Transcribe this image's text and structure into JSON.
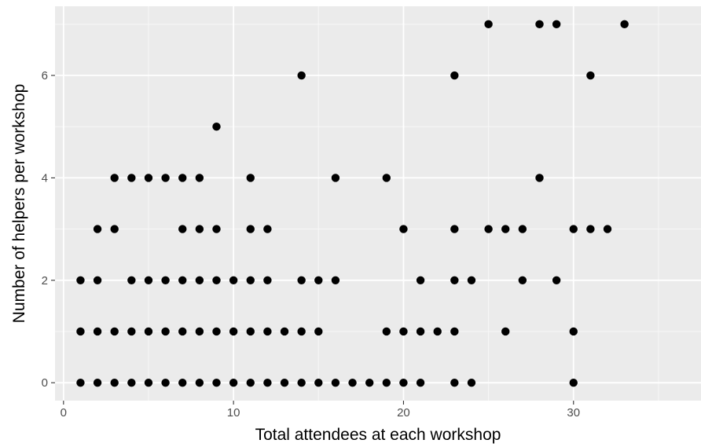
{
  "chart_data": {
    "type": "scatter",
    "xlabel": "Total attendees at each workshop",
    "ylabel": "Number of helpers per workshop",
    "xlim": [
      -0.5,
      37.5
    ],
    "ylim": [
      -0.35,
      7.35
    ],
    "x_ticks": [
      0,
      10,
      20,
      30
    ],
    "y_ticks": [
      0,
      2,
      4,
      6
    ],
    "x_minor_ticks": [
      5,
      15,
      25,
      35
    ],
    "y_minor_ticks": [
      1,
      3,
      5,
      7
    ],
    "grid": true,
    "panel_color": "#ebebeb",
    "point_color": "#000000",
    "points": [
      [
        1,
        0
      ],
      [
        2,
        0
      ],
      [
        3,
        0
      ],
      [
        4,
        0
      ],
      [
        5,
        0
      ],
      [
        6,
        0
      ],
      [
        7,
        0
      ],
      [
        8,
        0
      ],
      [
        9,
        0
      ],
      [
        10,
        0
      ],
      [
        11,
        0
      ],
      [
        12,
        0
      ],
      [
        13,
        0
      ],
      [
        14,
        0
      ],
      [
        15,
        0
      ],
      [
        16,
        0
      ],
      [
        17,
        0
      ],
      [
        18,
        0
      ],
      [
        19,
        0
      ],
      [
        20,
        0
      ],
      [
        21,
        0
      ],
      [
        23,
        0
      ],
      [
        24,
        0
      ],
      [
        30,
        0
      ],
      [
        1,
        1
      ],
      [
        2,
        1
      ],
      [
        3,
        1
      ],
      [
        4,
        1
      ],
      [
        5,
        1
      ],
      [
        6,
        1
      ],
      [
        7,
        1
      ],
      [
        8,
        1
      ],
      [
        9,
        1
      ],
      [
        10,
        1
      ],
      [
        11,
        1
      ],
      [
        12,
        1
      ],
      [
        13,
        1
      ],
      [
        14,
        1
      ],
      [
        15,
        1
      ],
      [
        19,
        1
      ],
      [
        20,
        1
      ],
      [
        21,
        1
      ],
      [
        22,
        1
      ],
      [
        23,
        1
      ],
      [
        26,
        1
      ],
      [
        30,
        1
      ],
      [
        1,
        2
      ],
      [
        2,
        2
      ],
      [
        4,
        2
      ],
      [
        5,
        2
      ],
      [
        6,
        2
      ],
      [
        7,
        2
      ],
      [
        8,
        2
      ],
      [
        9,
        2
      ],
      [
        10,
        2
      ],
      [
        11,
        2
      ],
      [
        12,
        2
      ],
      [
        14,
        2
      ],
      [
        15,
        2
      ],
      [
        16,
        2
      ],
      [
        21,
        2
      ],
      [
        23,
        2
      ],
      [
        24,
        2
      ],
      [
        27,
        2
      ],
      [
        29,
        2
      ],
      [
        2,
        3
      ],
      [
        3,
        3
      ],
      [
        7,
        3
      ],
      [
        8,
        3
      ],
      [
        9,
        3
      ],
      [
        11,
        3
      ],
      [
        12,
        3
      ],
      [
        20,
        3
      ],
      [
        23,
        3
      ],
      [
        25,
        3
      ],
      [
        26,
        3
      ],
      [
        27,
        3
      ],
      [
        30,
        3
      ],
      [
        31,
        3
      ],
      [
        32,
        3
      ],
      [
        3,
        4
      ],
      [
        4,
        4
      ],
      [
        5,
        4
      ],
      [
        6,
        4
      ],
      [
        7,
        4
      ],
      [
        8,
        4
      ],
      [
        11,
        4
      ],
      [
        16,
        4
      ],
      [
        19,
        4
      ],
      [
        28,
        4
      ],
      [
        9,
        5
      ],
      [
        14,
        6
      ],
      [
        23,
        6
      ],
      [
        31,
        6
      ],
      [
        25,
        7
      ],
      [
        28,
        7
      ],
      [
        29,
        7
      ],
      [
        33,
        7
      ]
    ]
  }
}
